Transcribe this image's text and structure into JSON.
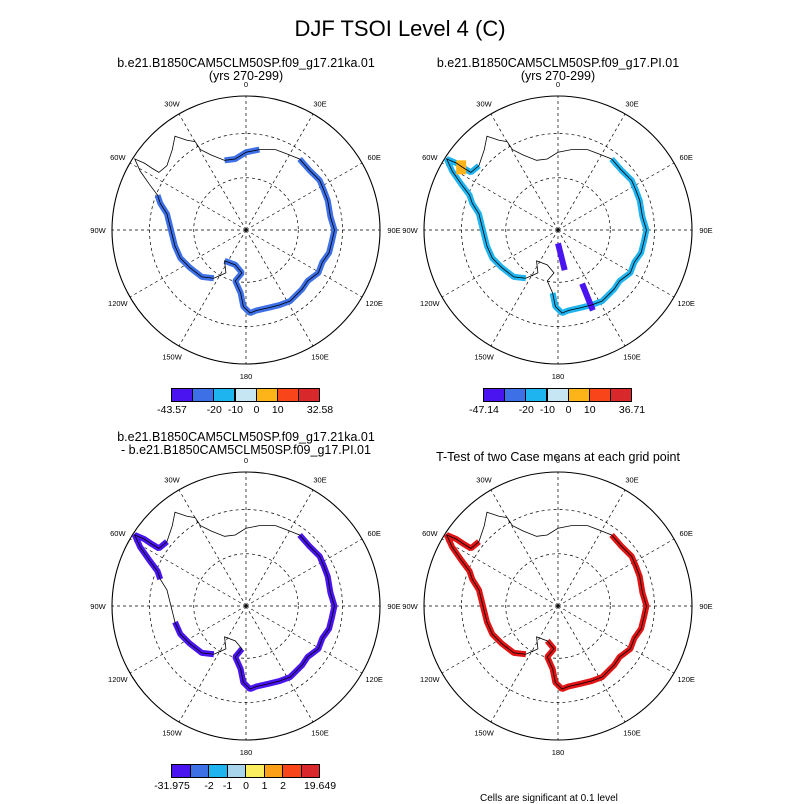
{
  "title": "DJF TSOI Level 4 (C)",
  "panels": [
    {
      "title_line1": "b.e21.B1850CAM5CLM50SP.f09_g17.21ka.01",
      "title_line2": "(yrs 270-299)"
    },
    {
      "title_line1": "b.e21.B1850CAM5CLM50SP.f09_g17.PI.01",
      "title_line2": "(yrs 270-299)"
    },
    {
      "title_line1": "b.e21.B1850CAM5CLM50SP.f09_g17.21ka.01",
      "title_line2": "- b.e21.B1850CAM5CLM50SP.f09_g17.PI.01"
    },
    {
      "title_line1": "T-Test of two Case means at each grid point",
      "title_line2": ""
    }
  ],
  "lon_labels": [
    "0",
    "30E",
    "60E",
    "90E",
    "120E",
    "150E",
    "180",
    "150W",
    "120W",
    "90W",
    "60W",
    "30W"
  ],
  "colorbars": [
    {
      "colors": [
        "#4a14f0",
        "#3d6fe6",
        "#1eb4f0",
        "#c6e6f4",
        "#fcb418",
        "#f8461a",
        "#d8282c"
      ],
      "labels": [
        "-43.57",
        "-20",
        "-10",
        "0",
        "10",
        "32.58"
      ]
    },
    {
      "colors": [
        "#4a14f0",
        "#3d6fe6",
        "#1eb4f0",
        "#c6e6f4",
        "#fcb418",
        "#f8461a",
        "#d8282c"
      ],
      "labels": [
        "-47.14",
        "-20",
        "-10",
        "0",
        "10",
        "36.71"
      ]
    },
    {
      "colors": [
        "#4a14f0",
        "#3d6fe6",
        "#1eb4f0",
        "#a8d4ec",
        "#fbed60",
        "#fca018",
        "#f8461a",
        "#d8282c"
      ],
      "labels": [
        "-31.975",
        "-2",
        "-1",
        "0",
        "1",
        "2",
        "19.649"
      ]
    }
  ],
  "footnote": "Cells are significant at 0.1 level",
  "colors": {
    "panel1_fill": "#3d6fe6",
    "panel2_fill": "#1eb4f0",
    "panel2_accent": "#4a14f0",
    "panel2_warm": "#fcb418",
    "panel3_fill": "#4a14f0",
    "panel4_fill": "#e01414"
  }
}
